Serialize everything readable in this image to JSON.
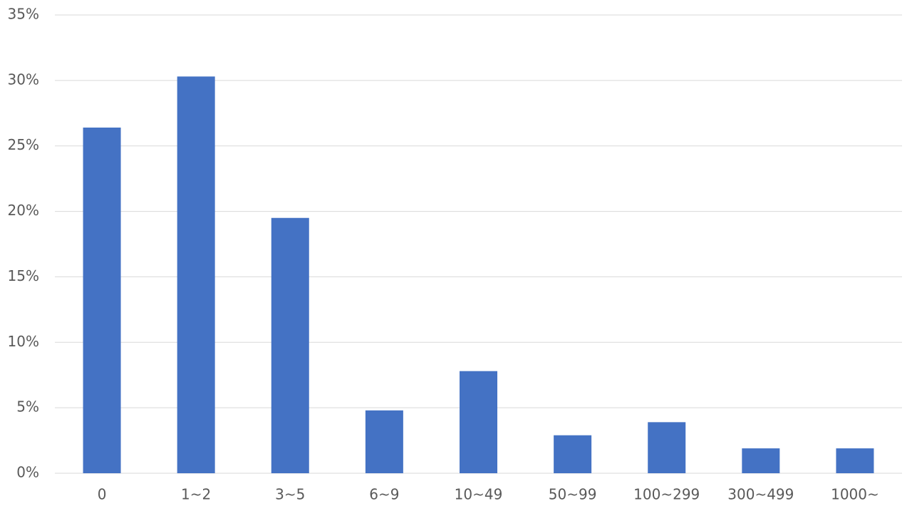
{
  "chart_data": {
    "type": "bar",
    "categories": [
      "0",
      "1~2",
      "3~5",
      "6~9",
      "10~49",
      "50~99",
      "100~299",
      "300~499",
      "1000~"
    ],
    "values": [
      26.4,
      30.3,
      19.5,
      4.8,
      7.8,
      2.9,
      3.9,
      1.9,
      1.9
    ],
    "color": "#4472c4",
    "ylim": [
      0,
      35
    ],
    "yticks": [
      {
        "value": 0,
        "label": "0%"
      },
      {
        "value": 5,
        "label": "5%"
      },
      {
        "value": 10,
        "label": "10%"
      },
      {
        "value": 15,
        "label": "15%"
      },
      {
        "value": 20,
        "label": "20%"
      },
      {
        "value": 25,
        "label": "25%"
      },
      {
        "value": 30,
        "label": "30%"
      },
      {
        "value": 35,
        "label": "35%"
      }
    ],
    "grid": true
  }
}
